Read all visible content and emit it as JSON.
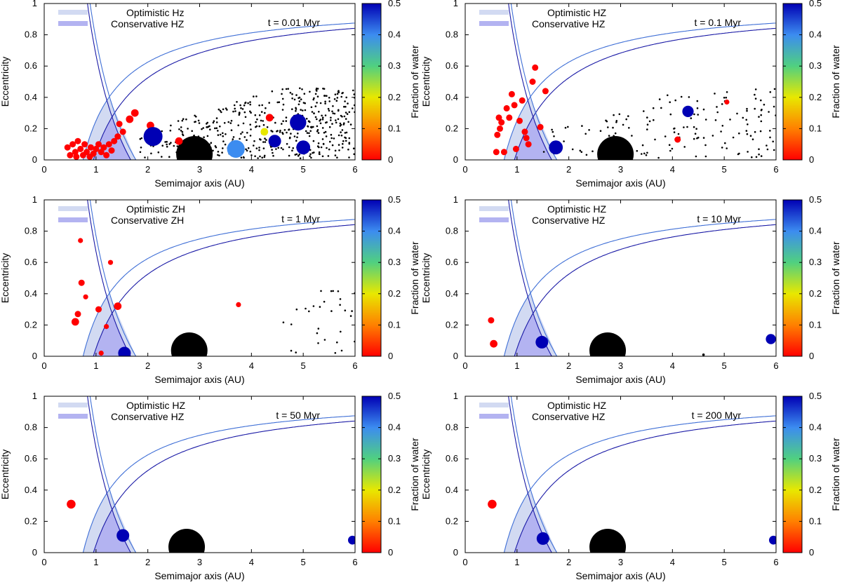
{
  "chart_data": [
    {
      "type": "scatter",
      "panel": 1,
      "time_label": "t = 0.01 Myr",
      "legend": [
        "Optimistic Hz",
        "Conservative HZ"
      ],
      "xlabel": "Semimajor axis (AU)",
      "ylabel": "Eccentricity",
      "xlim": [
        0,
        6
      ],
      "ylim": [
        0,
        1
      ],
      "xticks": [
        "0",
        "1",
        "2",
        "3",
        "4",
        "5",
        "6"
      ],
      "yticks": [
        "0",
        "0.2",
        "0.4",
        "0.6",
        "0.8",
        "1"
      ],
      "colorbar": {
        "label": "Fraction of water",
        "range": [
          0,
          0.5
        ],
        "ticks": [
          "0",
          "0.1",
          "0.2",
          "0.3",
          "0.4",
          "0.5"
        ]
      },
      "bodies": [
        {
          "a": 0.45,
          "e": 0.08,
          "s": 5,
          "w": 0
        },
        {
          "a": 0.5,
          "e": 0.03,
          "s": 5,
          "w": 0
        },
        {
          "a": 0.55,
          "e": 0.1,
          "s": 5,
          "w": 0
        },
        {
          "a": 0.6,
          "e": 0.05,
          "s": 5,
          "w": 0
        },
        {
          "a": 0.62,
          "e": 0.02,
          "s": 5,
          "w": 0
        },
        {
          "a": 0.65,
          "e": 0.12,
          "s": 5,
          "w": 0
        },
        {
          "a": 0.7,
          "e": 0.07,
          "s": 5,
          "w": 0
        },
        {
          "a": 0.75,
          "e": 0.03,
          "s": 5,
          "w": 0
        },
        {
          "a": 0.78,
          "e": 0.1,
          "s": 5,
          "w": 0
        },
        {
          "a": 0.82,
          "e": 0.05,
          "s": 5,
          "w": 0
        },
        {
          "a": 0.88,
          "e": 0.02,
          "s": 5,
          "w": 0
        },
        {
          "a": 0.9,
          "e": 0.08,
          "s": 5,
          "w": 0
        },
        {
          "a": 0.95,
          "e": 0.04,
          "s": 5,
          "w": 0
        },
        {
          "a": 1.0,
          "e": 0.07,
          "s": 5,
          "w": 0
        },
        {
          "a": 1.05,
          "e": 0.1,
          "s": 5,
          "w": 0
        },
        {
          "a": 1.1,
          "e": 0.05,
          "s": 5,
          "w": 0
        },
        {
          "a": 1.15,
          "e": 0.08,
          "s": 5,
          "w": 0
        },
        {
          "a": 1.2,
          "e": 0.03,
          "s": 5,
          "w": 0
        },
        {
          "a": 1.25,
          "e": 0.1,
          "s": 5,
          "w": 0
        },
        {
          "a": 1.3,
          "e": 0.06,
          "s": 5,
          "w": 0
        },
        {
          "a": 1.35,
          "e": 0.12,
          "s": 5,
          "w": 0
        },
        {
          "a": 1.42,
          "e": 0.15,
          "s": 5,
          "w": 0
        },
        {
          "a": 1.45,
          "e": 0.23,
          "s": 5,
          "w": 0
        },
        {
          "a": 1.52,
          "e": 0.18,
          "s": 5,
          "w": 0
        },
        {
          "a": 1.65,
          "e": 0.26,
          "s": 6,
          "w": 0
        },
        {
          "a": 1.75,
          "e": 0.3,
          "s": 6,
          "w": 0
        },
        {
          "a": 2.05,
          "e": 0.22,
          "s": 6,
          "w": 0
        },
        {
          "a": 2.1,
          "e": 0.15,
          "s": 15,
          "w": 0.5
        },
        {
          "a": 2.6,
          "e": 0.12,
          "s": 6,
          "w": 0
        },
        {
          "a": 3.7,
          "e": 0.07,
          "s": 14,
          "w": 0.4
        },
        {
          "a": 4.25,
          "e": 0.18,
          "s": 6,
          "w": 0.2
        },
        {
          "a": 4.35,
          "e": 0.27,
          "s": 6,
          "w": 0
        },
        {
          "a": 4.45,
          "e": 0.12,
          "s": 10,
          "w": 0.5
        },
        {
          "a": 4.9,
          "e": 0.24,
          "s": 13,
          "w": 0.5
        },
        {
          "a": 5.0,
          "e": 0.08,
          "s": 11,
          "w": 0.5
        }
      ],
      "giant": {
        "a": 2.9,
        "e": 0.0
      },
      "planetesimals": {
        "count": 480,
        "a_range": [
          1.8,
          6.0
        ],
        "e_max": 0.45,
        "seed": 7
      }
    },
    {
      "type": "scatter",
      "panel": 2,
      "time_label": "t = 0.1 Myr",
      "legend": [
        "Optimistic HZ",
        "Conservative HZ"
      ],
      "xlabel": "Semimajor axis (AU)",
      "ylabel": "Eccentricity",
      "xlim": [
        0,
        6
      ],
      "ylim": [
        0,
        1
      ],
      "xticks": [
        "0",
        "1",
        "2",
        "3",
        "4",
        "5",
        "6"
      ],
      "yticks": [
        "0",
        "0.2",
        "0.4",
        "0.6",
        "0.8",
        "1"
      ],
      "colorbar": {
        "label": "Fraction of water",
        "range": [
          0,
          0.5
        ],
        "ticks": [
          "0",
          "0.1",
          "0.2",
          "0.3",
          "0.4",
          "0.5"
        ]
      },
      "bodies": [
        {
          "a": 0.6,
          "e": 0.05,
          "s": 5,
          "w": 0
        },
        {
          "a": 0.62,
          "e": 0.16,
          "s": 5,
          "w": 0
        },
        {
          "a": 0.65,
          "e": 0.27,
          "s": 5,
          "w": 0
        },
        {
          "a": 0.67,
          "e": 0.2,
          "s": 5,
          "w": 0
        },
        {
          "a": 0.7,
          "e": 0.24,
          "s": 5,
          "w": 0
        },
        {
          "a": 0.75,
          "e": 0.05,
          "s": 5,
          "w": 0
        },
        {
          "a": 0.8,
          "e": 0.33,
          "s": 5,
          "w": 0
        },
        {
          "a": 0.85,
          "e": 0.27,
          "s": 5,
          "w": 0
        },
        {
          "a": 0.9,
          "e": 0.42,
          "s": 5,
          "w": 0
        },
        {
          "a": 0.95,
          "e": 0.35,
          "s": 5,
          "w": 0
        },
        {
          "a": 0.98,
          "e": 0.07,
          "s": 5,
          "w": 0
        },
        {
          "a": 1.05,
          "e": 0.25,
          "s": 5,
          "w": 0
        },
        {
          "a": 1.1,
          "e": 0.38,
          "s": 5,
          "w": 0
        },
        {
          "a": 1.15,
          "e": 0.18,
          "s": 5,
          "w": 0
        },
        {
          "a": 1.18,
          "e": 0.14,
          "s": 5,
          "w": 0
        },
        {
          "a": 1.22,
          "e": 0.1,
          "s": 5,
          "w": 0
        },
        {
          "a": 1.3,
          "e": 0.5,
          "s": 5,
          "w": 0
        },
        {
          "a": 1.35,
          "e": 0.59,
          "s": 5,
          "w": 0
        },
        {
          "a": 1.45,
          "e": 0.21,
          "s": 5,
          "w": 0
        },
        {
          "a": 1.55,
          "e": 0.44,
          "s": 5,
          "w": 0
        },
        {
          "a": 1.75,
          "e": 0.08,
          "s": 11,
          "w": 0.5
        },
        {
          "a": 4.1,
          "e": 0.13,
          "s": 5,
          "w": 0
        },
        {
          "a": 4.3,
          "e": 0.31,
          "s": 9,
          "w": 0.5
        },
        {
          "a": 5.05,
          "e": 0.37,
          "s": 4,
          "w": 0
        }
      ],
      "giant": {
        "a": 2.9,
        "e": 0.0
      },
      "planetesimals": {
        "count": 150,
        "a_range": [
          1.3,
          6.0
        ],
        "e_max": 0.45,
        "seed": 11
      }
    },
    {
      "type": "scatter",
      "panel": 3,
      "time_label": "t = 1 Myr",
      "legend": [
        "Optimistic ZH",
        "Conservative ZH"
      ],
      "xlabel": "Semimajor axis (AU)",
      "ylabel": "Eccentricity",
      "xlim": [
        0,
        6
      ],
      "ylim": [
        0,
        1
      ],
      "xticks": [
        "0",
        "1",
        "2",
        "3",
        "4",
        "5",
        "6"
      ],
      "yticks": [
        "0",
        "0.2",
        "0.4",
        "0.6",
        "0.8",
        "1"
      ],
      "colorbar": {
        "label": "Fraction of water",
        "range": [
          0,
          0.5
        ],
        "ticks": [
          "0",
          "0.1",
          "0.2",
          "0.3",
          "0.4",
          "0.5"
        ]
      },
      "bodies": [
        {
          "a": 0.6,
          "e": 0.22,
          "s": 6,
          "w": 0
        },
        {
          "a": 0.65,
          "e": 0.27,
          "s": 5,
          "w": 0
        },
        {
          "a": 0.7,
          "e": 0.74,
          "s": 4,
          "w": 0
        },
        {
          "a": 0.72,
          "e": 0.47,
          "s": 5,
          "w": 0
        },
        {
          "a": 0.8,
          "e": 0.38,
          "s": 4,
          "w": 0
        },
        {
          "a": 1.05,
          "e": 0.3,
          "s": 5,
          "w": 0
        },
        {
          "a": 1.1,
          "e": 0.02,
          "s": 4,
          "w": 0
        },
        {
          "a": 1.2,
          "e": 0.19,
          "s": 4,
          "w": 0
        },
        {
          "a": 1.28,
          "e": 0.6,
          "s": 4,
          "w": 0
        },
        {
          "a": 1.42,
          "e": 0.32,
          "s": 6,
          "w": 0
        },
        {
          "a": 1.55,
          "e": 0.02,
          "s": 10,
          "w": 0.5
        },
        {
          "a": 3.75,
          "e": 0.33,
          "s": 4,
          "w": 0
        }
      ],
      "giant": {
        "a": 2.8,
        "e": 0.0
      },
      "planetesimals": {
        "count": 30,
        "a_range": [
          4.3,
          6.0
        ],
        "e_max": 0.45,
        "seed": 23
      }
    },
    {
      "type": "scatter",
      "panel": 4,
      "time_label": "t = 10 Myr",
      "legend": [
        "Optimistic HZ",
        "Conservative HZ"
      ],
      "xlabel": "Semimajor axis (AU)",
      "ylabel": "Eccentricity",
      "xlim": [
        0,
        6
      ],
      "ylim": [
        0,
        1
      ],
      "xticks": [
        "0",
        "1",
        "2",
        "3",
        "4",
        "5",
        "6"
      ],
      "yticks": [
        "0",
        "0.2",
        "0.4",
        "0.6",
        "0.8",
        "1"
      ],
      "colorbar": {
        "label": "Fraction of water",
        "range": [
          0,
          0.5
        ],
        "ticks": [
          "0",
          "0.1",
          "0.2",
          "0.3",
          "0.4",
          "0.5"
        ]
      },
      "bodies": [
        {
          "a": 0.5,
          "e": 0.23,
          "s": 5,
          "w": 0
        },
        {
          "a": 0.55,
          "e": 0.08,
          "s": 6,
          "w": 0
        },
        {
          "a": 1.48,
          "e": 0.09,
          "s": 10,
          "w": 0.5
        },
        {
          "a": 4.6,
          "e": 0.01,
          "s": 2,
          "w": -1
        },
        {
          "a": 5.9,
          "e": 0.11,
          "s": 8,
          "w": 0.5
        }
      ],
      "giant": {
        "a": 2.75,
        "e": 0.0
      }
    },
    {
      "type": "scatter",
      "panel": 5,
      "time_label": "t = 50 Myr",
      "legend": [
        "Optimistic HZ",
        "Conservative HZ"
      ],
      "xlabel": "Semimajor axis (AU)",
      "ylabel": "Eccentricity",
      "xlim": [
        0,
        6
      ],
      "ylim": [
        0,
        1
      ],
      "xticks": [
        "0",
        "1",
        "2",
        "3",
        "4",
        "5",
        "6"
      ],
      "yticks": [
        "0",
        "0.2",
        "0.4",
        "0.6",
        "0.8",
        "1"
      ],
      "colorbar": {
        "label": "Fraction of water",
        "range": [
          0,
          0.5
        ],
        "ticks": [
          "0",
          "0.1",
          "0.2",
          "0.3",
          "0.4",
          "0.5"
        ]
      },
      "bodies": [
        {
          "a": 0.52,
          "e": 0.31,
          "s": 7,
          "w": 0
        },
        {
          "a": 1.52,
          "e": 0.11,
          "s": 10,
          "w": 0.5
        },
        {
          "a": 5.95,
          "e": 0.08,
          "s": 7,
          "w": 0.5
        }
      ],
      "giant": {
        "a": 2.75,
        "e": 0.0
      }
    },
    {
      "type": "scatter",
      "panel": 6,
      "time_label": "t = 200 Myr",
      "legend": [
        "Optimistic HZ",
        "Conservative HZ"
      ],
      "xlabel": "Semimajor axis (AU)",
      "ylabel": "Eccentricity",
      "xlim": [
        0,
        6
      ],
      "ylim": [
        0,
        1
      ],
      "xticks": [
        "0",
        "1",
        "2",
        "3",
        "4",
        "5",
        "6"
      ],
      "yticks": [
        "0",
        "0.2",
        "0.4",
        "0.6",
        "0.8",
        "1"
      ],
      "colorbar": {
        "label": "Fraction of water",
        "range": [
          0,
          0.5
        ],
        "ticks": [
          "0",
          "0.1",
          "0.2",
          "0.3",
          "0.4",
          "0.5"
        ]
      },
      "bodies": [
        {
          "a": 0.52,
          "e": 0.31,
          "s": 7,
          "w": 0
        },
        {
          "a": 1.5,
          "e": 0.09,
          "s": 10,
          "w": 0.5
        },
        {
          "a": 5.95,
          "e": 0.08,
          "s": 7,
          "w": 0.5
        }
      ],
      "giant": {
        "a": 2.75,
        "e": 0.0
      }
    }
  ],
  "colors": {
    "optimistic_fill": "#d2daf2",
    "conservative_fill": "#b3b3f1",
    "optimistic_line": "#3f6fd6",
    "conservative_line": "#1a1aa6",
    "giant": "#000000",
    "planetesimal": "#000000"
  }
}
